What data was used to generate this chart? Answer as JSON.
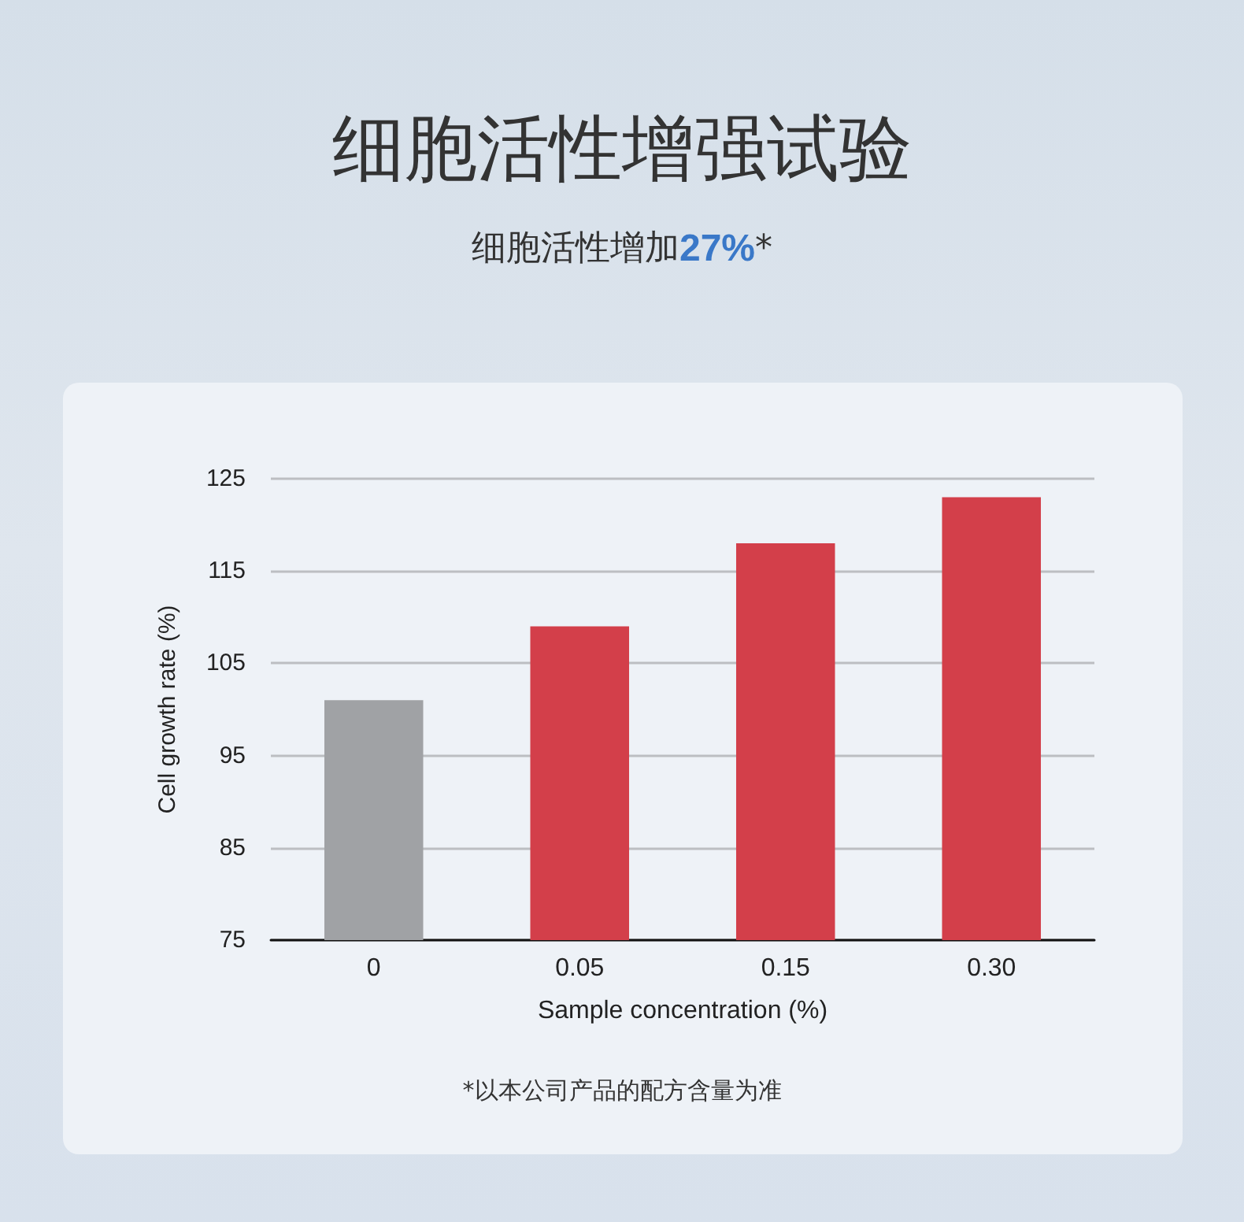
{
  "chart_data": {
    "type": "bar",
    "title": "细胞活性增强试验",
    "subtitle": "细胞活性增加27%*",
    "categories": [
      "0",
      "0.05",
      "0.15",
      "0.30"
    ],
    "values": [
      101,
      109,
      118,
      123
    ],
    "colors": [
      "#a0a2a5",
      "#d33f4a",
      "#d33f4a",
      "#d33f4a"
    ],
    "xlabel": "Sample concentration (%)",
    "ylabel": "Cell growth rate (%)",
    "ylim": [
      75,
      125
    ],
    "yticks": [
      75,
      85,
      95,
      105,
      115,
      125
    ],
    "grid": "y",
    "annotations": [
      "*以本公司产品的配方含量为准"
    ]
  }
}
